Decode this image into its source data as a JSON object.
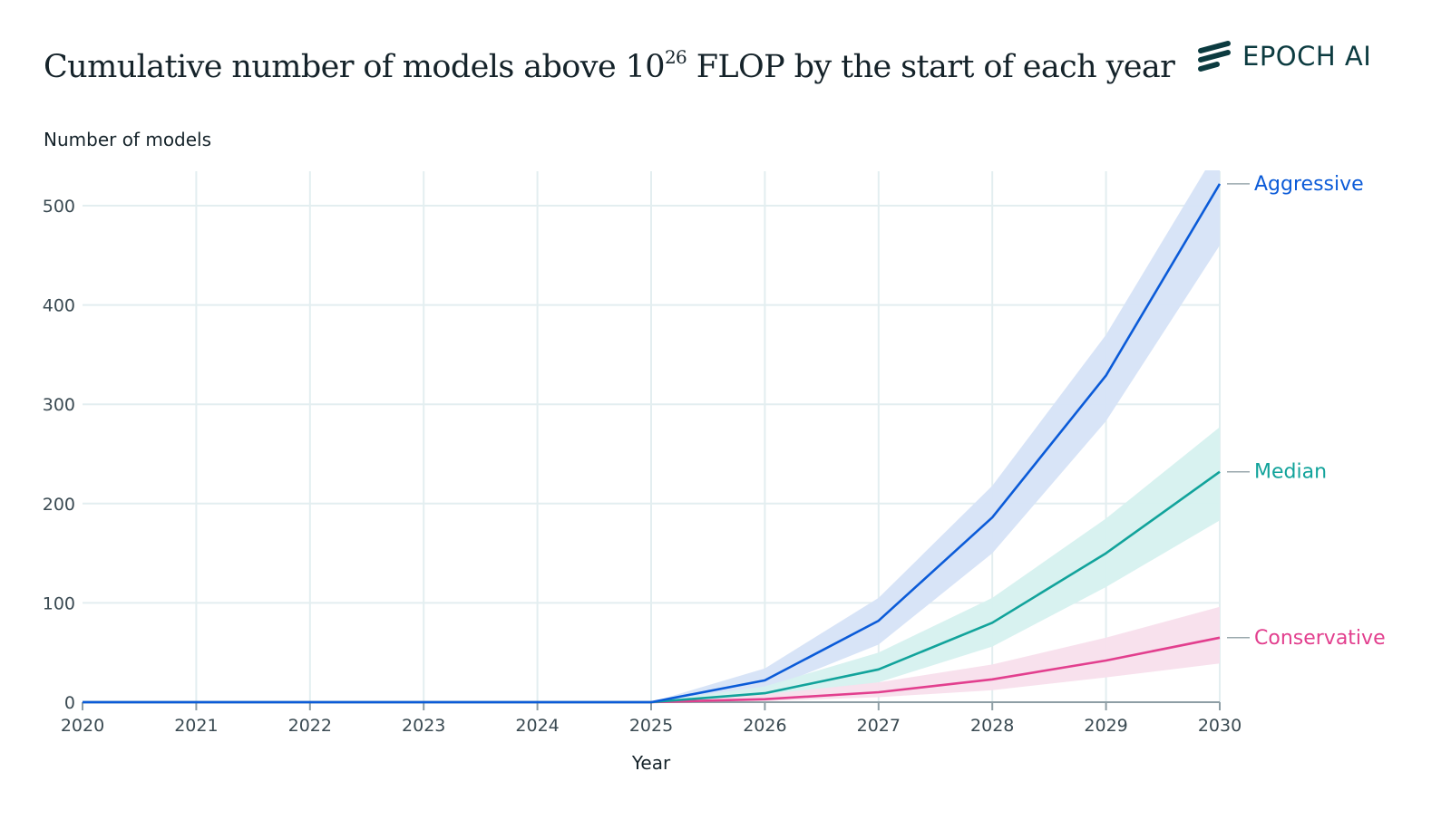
{
  "header": {
    "title_main": "Cumulative number of models above 10",
    "title_sup": "26",
    "title_rest": " FLOP by the start of each year",
    "logo_text": "EPOCH AI"
  },
  "chart_data": {
    "type": "line",
    "title": "Cumulative number of models above 10^26 FLOP by the start of each year",
    "xlabel": "Year",
    "ylabel": "Number of models",
    "xlim": [
      2020,
      2030
    ],
    "ylim": [
      0,
      535
    ],
    "x_ticks": [
      "2020",
      "2021",
      "2022",
      "2023",
      "2024",
      "2025",
      "2026",
      "2027",
      "2028",
      "2029",
      "2030"
    ],
    "y_ticks": [
      "0",
      "100",
      "200",
      "300",
      "400",
      "500"
    ],
    "grid": true,
    "legend": "inline-right",
    "x": [
      2020,
      2021,
      2022,
      2023,
      2024,
      2025,
      2026,
      2027,
      2028,
      2029,
      2030
    ],
    "series": [
      {
        "name": "Aggressive",
        "color": "#0b5bd8",
        "band_color": "#d6e3f7",
        "values": [
          0,
          0,
          0,
          0,
          0,
          0,
          22,
          82,
          186,
          329,
          522
        ],
        "upper": [
          0,
          0,
          0,
          0,
          0,
          0,
          34,
          105,
          218,
          370,
          560
        ],
        "lower": [
          0,
          0,
          0,
          0,
          0,
          0,
          12,
          58,
          150,
          283,
          460
        ]
      },
      {
        "name": "Median",
        "color": "#12a39b",
        "band_color": "#d6f1ef",
        "values": [
          0,
          0,
          0,
          0,
          0,
          0,
          9,
          33,
          80,
          150,
          232
        ],
        "upper": [
          0,
          0,
          0,
          0,
          0,
          0,
          16,
          50,
          105,
          185,
          277
        ],
        "lower": [
          0,
          0,
          0,
          0,
          0,
          0,
          4,
          20,
          56,
          116,
          183
        ]
      },
      {
        "name": "Conservative",
        "color": "#e23f8e",
        "band_color": "#f8dfec",
        "values": [
          0,
          0,
          0,
          0,
          0,
          0,
          3,
          10,
          23,
          42,
          65
        ],
        "upper": [
          0,
          0,
          0,
          0,
          0,
          0,
          8,
          20,
          38,
          65,
          96
        ],
        "lower": [
          0,
          0,
          0,
          0,
          0,
          0,
          1,
          5,
          12,
          25,
          39
        ]
      }
    ]
  }
}
